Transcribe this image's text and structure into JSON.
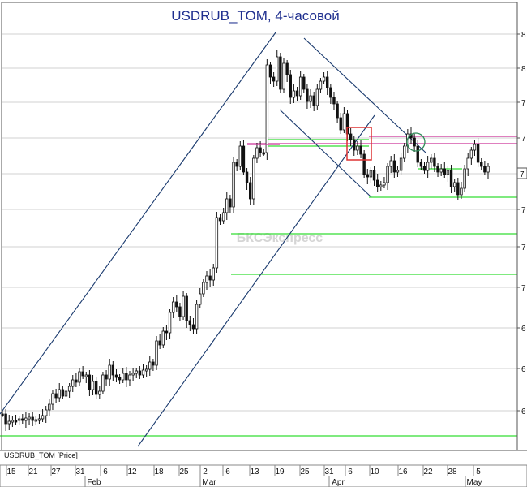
{
  "chart_data": {
    "type": "candlestick",
    "title": "USDRUB_TOM, 4-часовой",
    "series_label": "USDRUB_TOM [Price]",
    "watermark": "БКСЭкспресс",
    "x_tick_labels": [
      "15",
      "21",
      "27",
      "31",
      "6",
      "12",
      "18",
      "25",
      "2",
      "6",
      "13",
      "19",
      "25",
      "31",
      "6",
      "10",
      "16",
      "22",
      "28",
      "5"
    ],
    "month_labels": [
      "Feb",
      "Mar",
      "Apr",
      "May"
    ],
    "y_tick_labels": [
      "8",
      "8",
      "7",
      "7",
      "7",
      "7",
      "7",
      "6",
      "6",
      "6",
      "6",
      "6"
    ],
    "last_price_label": "7",
    "colors": {
      "title": "#1f2f8f",
      "candles": "#111111",
      "channel": "#1a3a6e",
      "support": "#33dd33",
      "resistance": "#cc3399",
      "box": "#dd3333",
      "circle": "#2e8b57"
    },
    "series": [
      {
        "name": "price",
        "values": [
          510,
          522,
          519,
          518,
          518,
          516,
          518,
          515,
          514,
          518,
          517,
          516,
          512,
          505,
          498,
          485,
          490,
          480,
          488,
          482,
          476,
          468,
          471,
          458,
          463,
          462,
          480,
          470,
          486,
          482,
          462,
          467,
          450,
          462,
          465,
          468,
          460,
          468,
          462,
          460,
          457,
          462,
          456,
          455,
          446,
          450,
          420,
          425,
          408,
          410,
          385,
          372,
          378,
          390,
          365,
          395,
          400,
          405,
          375,
          362,
          348,
          340,
          345,
          330,
          268,
          272,
          262,
          245,
          255,
          200,
          205,
          180,
          212,
          225,
          245,
          195,
          182,
          188,
          188,
          80,
          95,
          100,
          70,
          110,
          78,
          92,
          120,
          112,
          118,
          95,
          110,
          125,
          118,
          130,
          110,
          100,
          95,
          108,
          120,
          128,
          145,
          160,
          140,
          165,
          172,
          185,
          180,
          190,
          215,
          218,
          210,
          222,
          230,
          228,
          225,
          205,
          198,
          212,
          210,
          195,
          180,
          165,
          170,
          180,
          200,
          205,
          210,
          200,
          195,
          205,
          212,
          208,
          215,
          210,
          230,
          225,
          240,
          232,
          208,
          195,
          185,
          178,
          200,
          205,
          212,
          205
        ]
      }
    ],
    "horizontal_levels": [
      {
        "kind": "support",
        "y": 537
      },
      {
        "kind": "support",
        "y": 338
      },
      {
        "kind": "support",
        "y": 288
      },
      {
        "kind": "support",
        "y": 243
      },
      {
        "kind": "support",
        "y": 208
      },
      {
        "kind": "support",
        "y": 180
      },
      {
        "kind": "support",
        "y": 172
      },
      {
        "kind": "resistance",
        "y": 177
      },
      {
        "kind": "resistance",
        "y": 168
      }
    ],
    "grid": true
  }
}
